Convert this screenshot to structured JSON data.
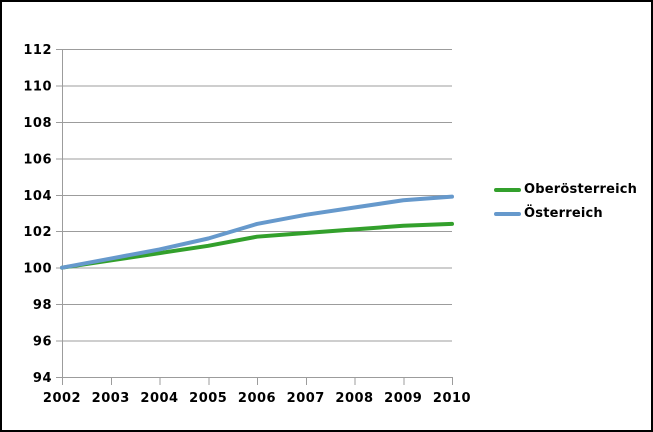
{
  "frame": {
    "background_color": "#ffffff",
    "border_color": "#000000"
  },
  "colors": {
    "gridline": "#9c9c9c",
    "axis": "#9c9c9c",
    "text": "#000000"
  },
  "legend": {
    "position": "right",
    "items": [
      {
        "label": "Oberösterreich",
        "color": "#33a02c"
      },
      {
        "label": "Österreich",
        "color": "#6699cc"
      }
    ]
  },
  "chart_data": {
    "type": "line",
    "title": "",
    "xlabel": "",
    "ylabel": "",
    "categories": [
      "2002",
      "2003",
      "2004",
      "2005",
      "2006",
      "2007",
      "2008",
      "2009",
      "2010"
    ],
    "series": [
      {
        "name": "Oberösterreich",
        "color": "#33a02c",
        "values": [
          100,
          100.4,
          100.8,
          101.2,
          101.7,
          101.9,
          102.1,
          102.3,
          102.4
        ]
      },
      {
        "name": "Österreich",
        "color": "#6699cc",
        "values": [
          100,
          100.5,
          101.0,
          101.6,
          102.4,
          102.9,
          103.3,
          103.7,
          103.9
        ]
      }
    ],
    "ylim": [
      94,
      112
    ],
    "yticks": [
      94,
      96,
      98,
      100,
      102,
      104,
      106,
      108,
      110,
      112
    ],
    "grid": true,
    "line_width": 4,
    "legend_position": "right"
  }
}
